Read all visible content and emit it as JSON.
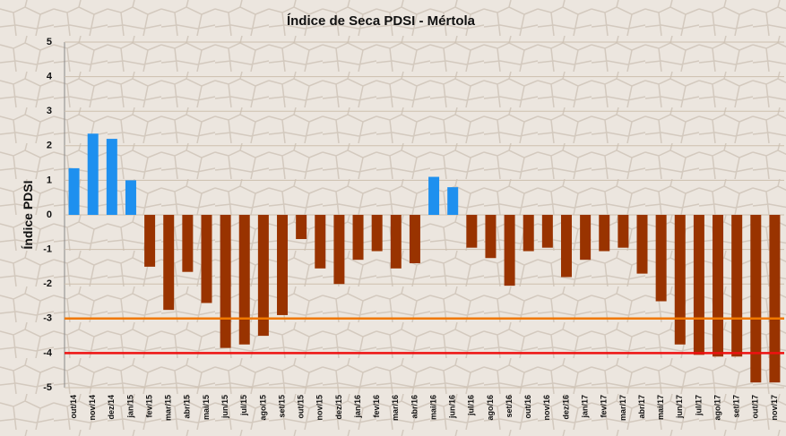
{
  "chart_data": {
    "type": "bar",
    "title": "Índice de Seca PDSI - Mértola",
    "y_label": "Índice PDSI",
    "categories": [
      "out/14",
      "nov/14",
      "dez/14",
      "jan/15",
      "fev/15",
      "mar/15",
      "abr/15",
      "mai/15",
      "jun/15",
      "jul/15",
      "ago/15",
      "set/15",
      "out/15",
      "nov/15",
      "dez/15",
      "jan/16",
      "fev/16",
      "mar/16",
      "abr/16",
      "mai/16",
      "jun/16",
      "jul/16",
      "ago/16",
      "set/16",
      "out/16",
      "nov/16",
      "dez/16",
      "jan/17",
      "fev/17",
      "mar/17",
      "abr/17",
      "mai/17",
      "jun/17",
      "jul/17",
      "ago/17",
      "set/17",
      "out/17",
      "nov/17"
    ],
    "values": [
      1.35,
      2.35,
      2.2,
      1.0,
      -1.5,
      -2.75,
      -1.65,
      -2.55,
      -3.85,
      -3.75,
      -3.5,
      -2.9,
      -0.7,
      -1.55,
      -2.0,
      -1.3,
      -1.05,
      -1.55,
      -1.4,
      1.1,
      0.8,
      -0.95,
      -1.25,
      -2.05,
      -1.05,
      -0.95,
      -1.8,
      -1.3,
      -1.05,
      -0.95,
      -1.7,
      -2.5,
      -3.75,
      -4.05,
      -4.1,
      -4.1,
      -4.85,
      -4.85
    ],
    "positive_color": "#1e90ef",
    "negative_color": "#993300",
    "ylim": [
      -5,
      5
    ],
    "yticks": [
      -5,
      -4,
      -3,
      -2,
      -1,
      0,
      1,
      2,
      3,
      4,
      5
    ],
    "grid": true,
    "reference_lines": [
      {
        "value": -3,
        "color": "#f07800"
      },
      {
        "value": -4,
        "color": "#ee1111"
      }
    ]
  }
}
